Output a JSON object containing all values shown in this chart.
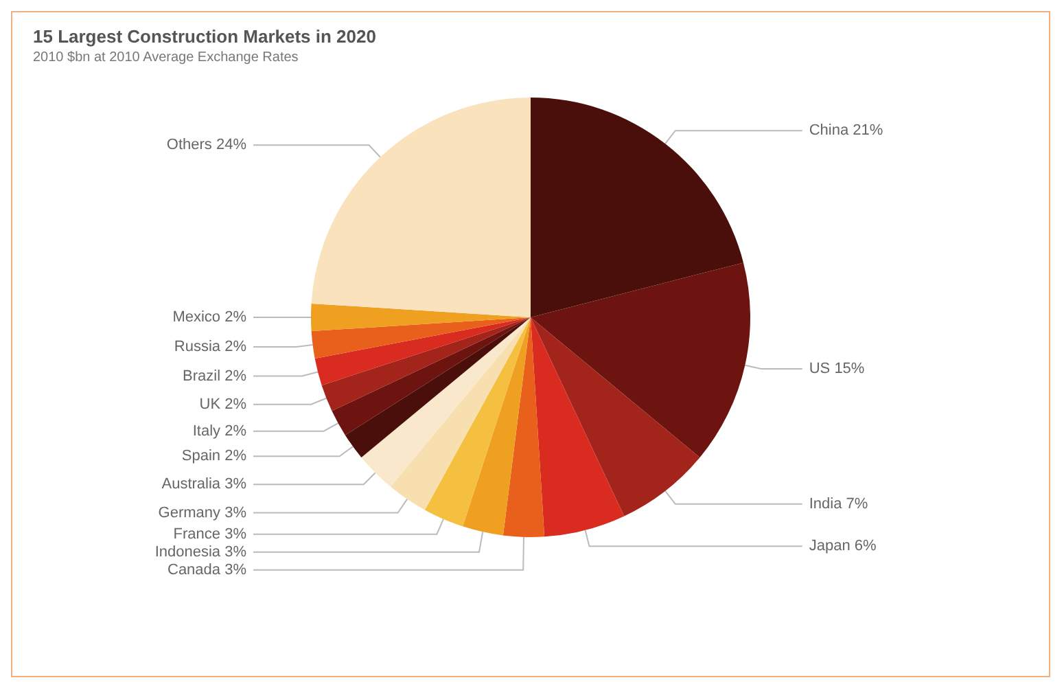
{
  "chart_data": {
    "type": "pie",
    "title": "15 Largest Construction Markets in 2020",
    "subtitle": "2010 $bn at 2010 Average Exchange Rates",
    "categories": [
      "China",
      "US",
      "India",
      "Japan",
      "Canada",
      "Indonesia",
      "France",
      "Germany",
      "Australia",
      "Spain",
      "Italy",
      "UK",
      "Brazil",
      "Russia",
      "Mexico",
      "Others"
    ],
    "values": [
      21,
      15,
      7,
      6,
      3,
      3,
      3,
      3,
      3,
      2,
      2,
      2,
      2,
      2,
      2,
      24
    ],
    "colors": [
      "#4a0e0b",
      "#6e1410",
      "#a3241a",
      "#d92b20",
      "#e8601c",
      "#f0a020",
      "#f5c040",
      "#f8dfb0",
      "#fae8cc",
      "#4a0e0b",
      "#6e1410",
      "#a3241a",
      "#d92b20",
      "#e8601c",
      "#f0a020",
      "#fae2bc"
    ],
    "value_labels": [
      "21%",
      "15%",
      "7%",
      "6%",
      "3%",
      "3%",
      "3%",
      "3%",
      "3%",
      "2%",
      "2%",
      "2%",
      "2%",
      "2%",
      "2%",
      "24%"
    ],
    "legend": false
  }
}
